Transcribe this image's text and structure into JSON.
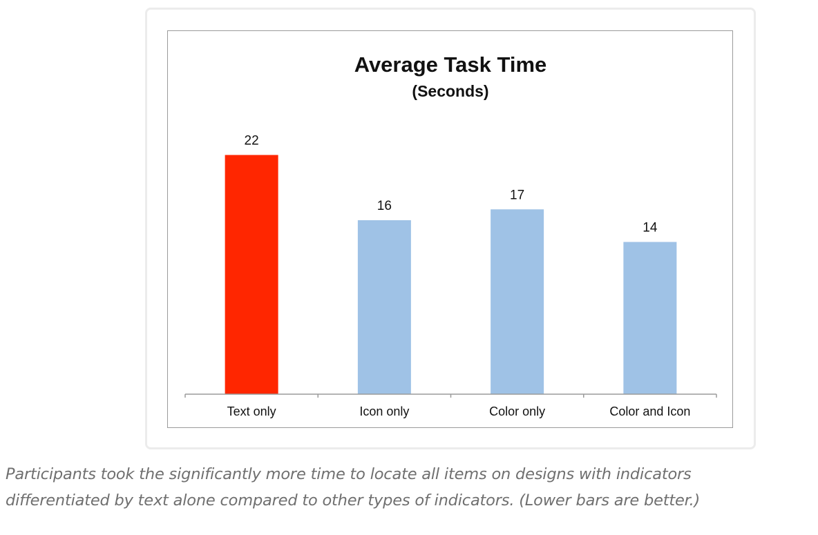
{
  "chart_data": {
    "type": "bar",
    "title": "Average Task Time",
    "subtitle": "(Seconds)",
    "xlabel": "",
    "ylabel": "",
    "categories": [
      "Text only",
      "Icon only",
      "Color only",
      "Color and Icon"
    ],
    "values": [
      22,
      16,
      17,
      14
    ],
    "data_labels": [
      "22",
      "16",
      "17",
      "14"
    ],
    "ylim": [
      0,
      24
    ],
    "grid": false,
    "legend": "none",
    "colors": {
      "highlight": "#ff2600",
      "default": "#9fc2e6",
      "axis": "#9a9a9a",
      "text": "#111111"
    },
    "highlight_index": 0
  },
  "caption": {
    "line1": "Participants took the significantly more time to locate all items on designs with indicators",
    "line2": "differentiated by text alone compared to other types of indicators. (Lower bars are better.)"
  }
}
